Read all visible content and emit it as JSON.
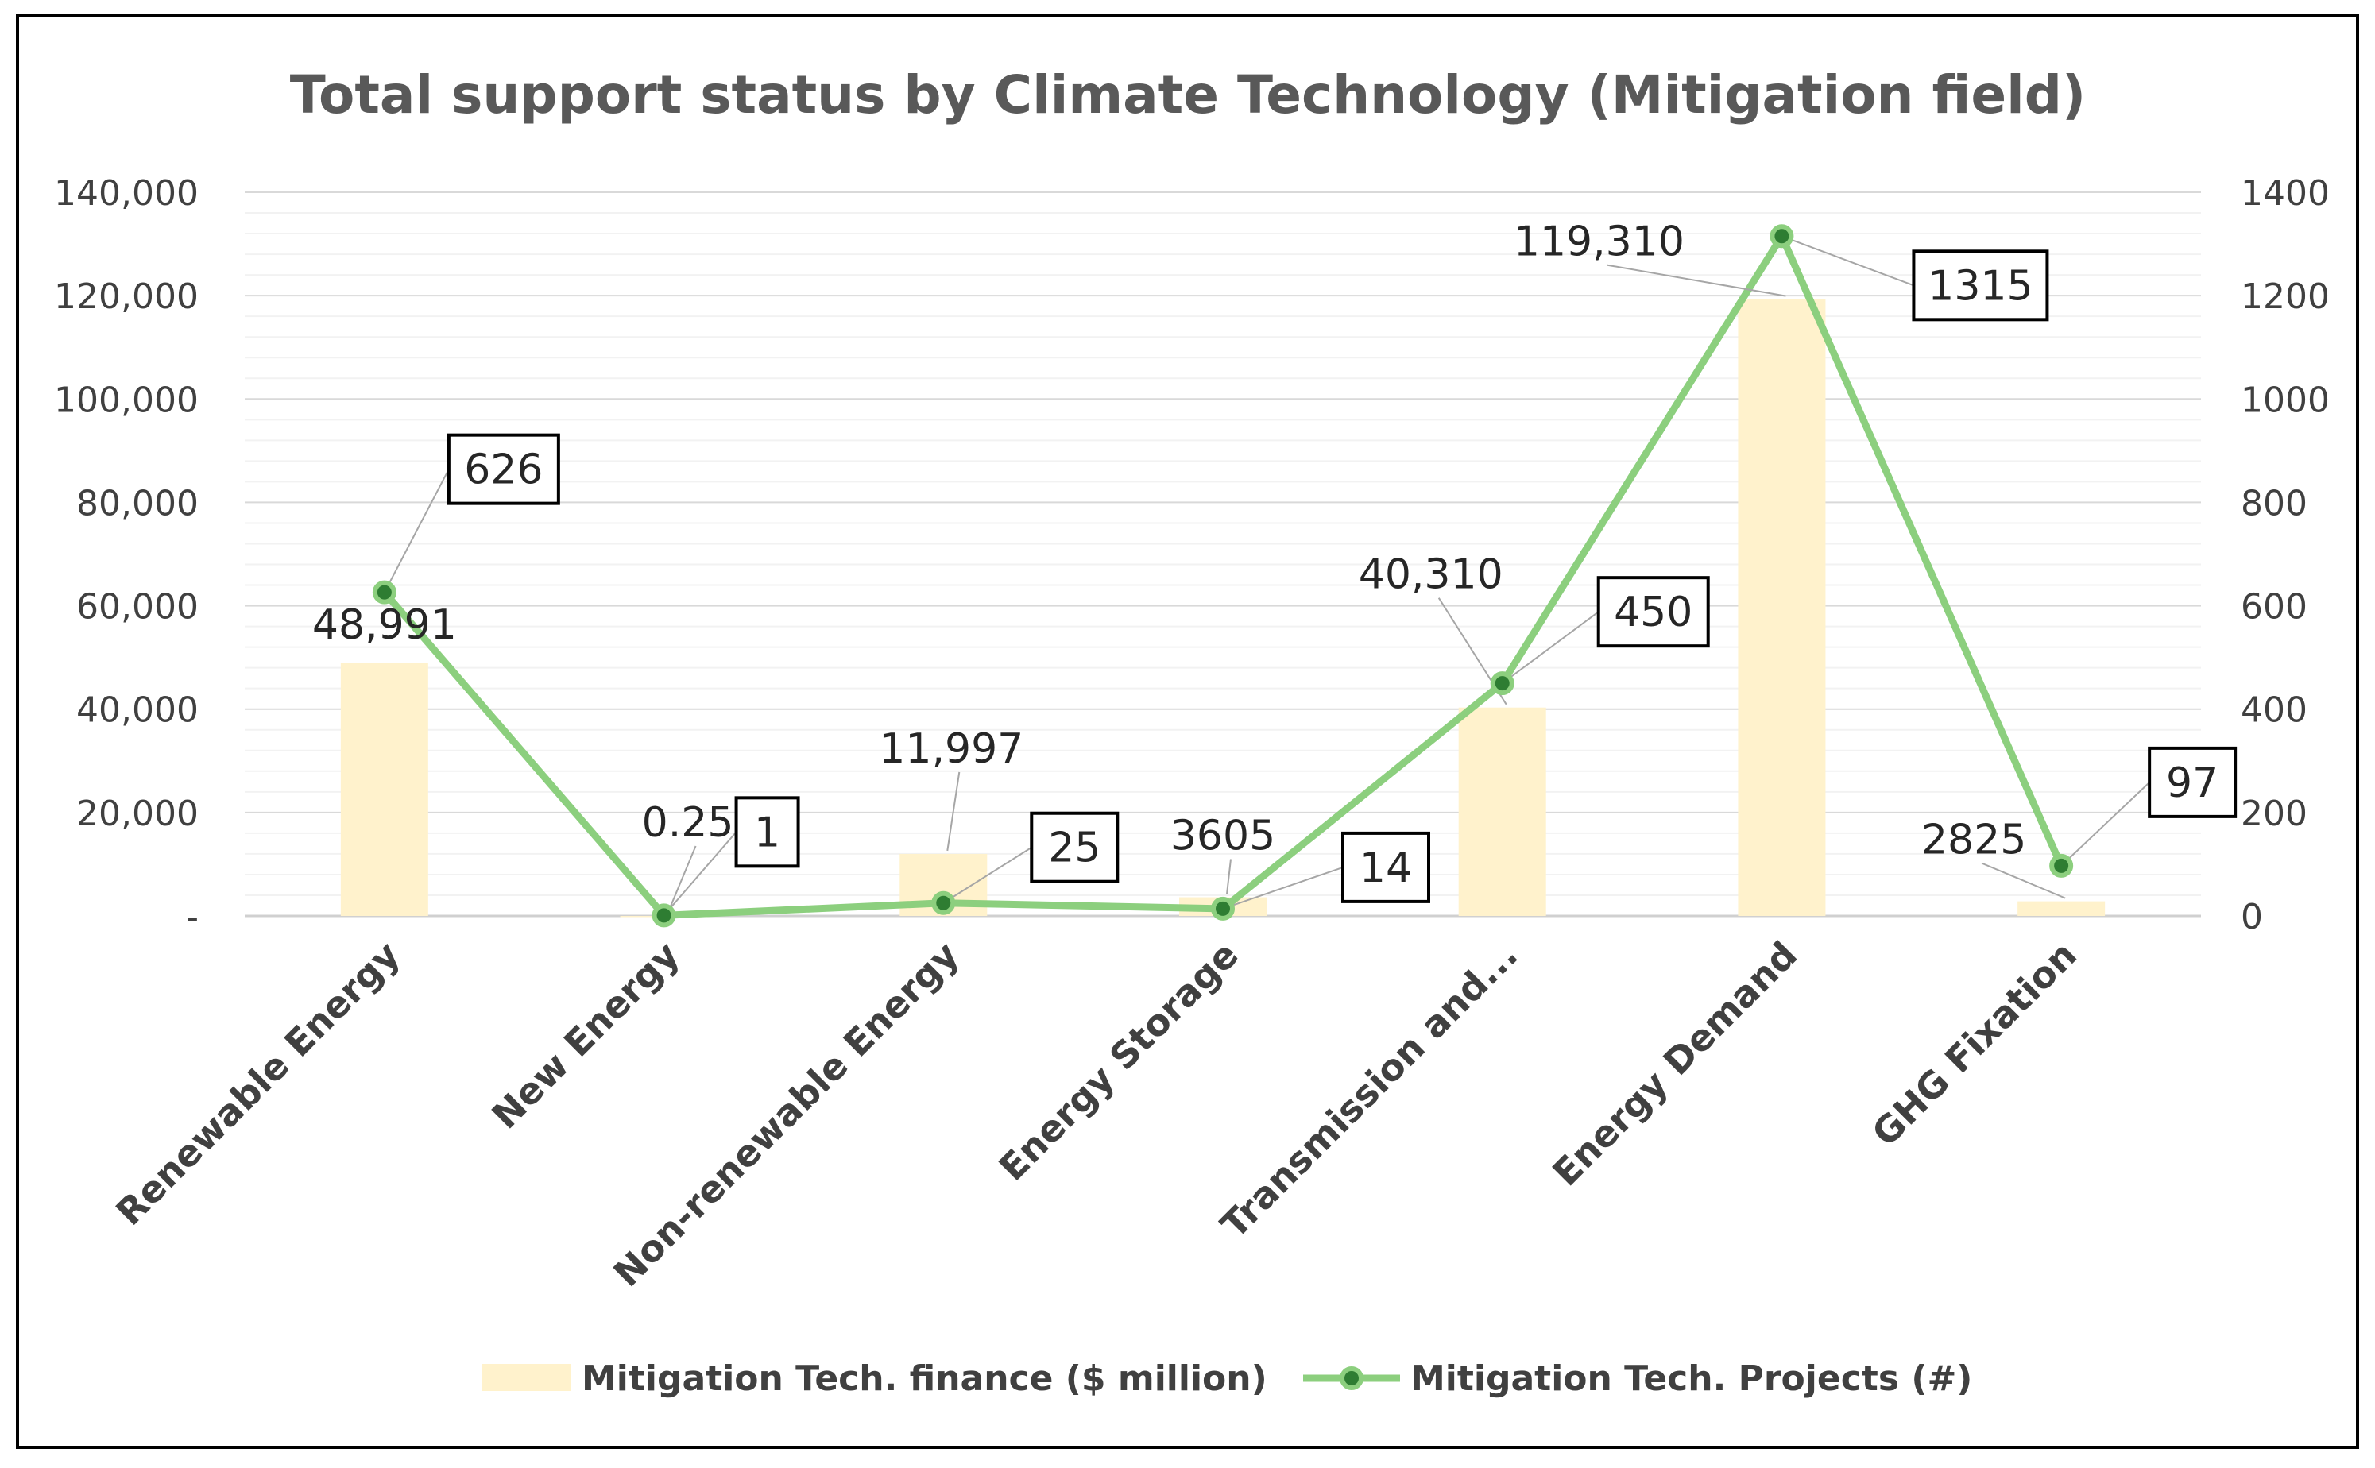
{
  "chart_data": {
    "type": "bar+line",
    "title": "Total support status by Climate Technology (Mitigation field)",
    "categories": [
      "Renewable Energy",
      "New Energy",
      "Non-renewable Energy",
      "Energy Storage",
      "Transmission and...",
      "Energy Demand",
      "GHG Fixation"
    ],
    "series": [
      {
        "name": "Mitigation Tech. finance ($ million)",
        "type": "bar",
        "axis": "left",
        "color": "#FFF2CC",
        "values": [
          48991,
          0.25,
          11997,
          3605,
          40310,
          119310,
          2825
        ],
        "labels": [
          "48,991",
          "0.25",
          "11,997",
          "3605",
          "40,310",
          "119,310",
          "2825"
        ]
      },
      {
        "name": "Mitigation Tech. Projects (#)",
        "type": "line",
        "axis": "right",
        "color": "#8CCF7E",
        "marker_color": "#2E7D32",
        "values": [
          626,
          1,
          25,
          14,
          450,
          1315,
          97
        ],
        "labels": [
          "626",
          "1",
          "25",
          "14",
          "450",
          "1315",
          "97"
        ]
      }
    ],
    "y_left": {
      "min": 0,
      "max": 140000,
      "ticks": [
        "-",
        "20,000",
        "40,000",
        "60,000",
        "80,000",
        "100,000",
        "120,000",
        "140,000"
      ]
    },
    "y_right": {
      "min": 0,
      "max": 1400,
      "ticks": [
        "0",
        "200",
        "400",
        "600",
        "800",
        "1000",
        "1200",
        "1400"
      ]
    },
    "grid": true,
    "legend_position": "bottom"
  }
}
